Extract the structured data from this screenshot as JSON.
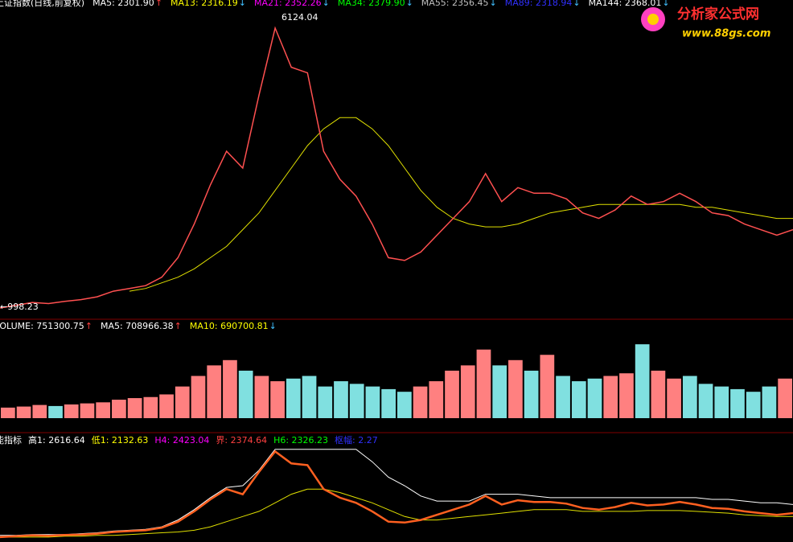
{
  "main_panel": {
    "title": "上证指数(日线,前复权)",
    "indicators": [
      {
        "label": "MA5: 2301.90",
        "arrow": "↑",
        "color": "#ffffff"
      },
      {
        "label": "MA13: 2316.19",
        "arrow": "↓",
        "color": "#ffff00"
      },
      {
        "label": "MA21: 2352.26",
        "arrow": "↓",
        "color": "#ff00ff"
      },
      {
        "label": "MA34: 2379.90",
        "arrow": "↓",
        "color": "#00ff00"
      },
      {
        "label": "MA55: 2356.45",
        "arrow": "↓",
        "color": "#c0c0c0"
      },
      {
        "label": "MA89: 2318.94",
        "arrow": "↓",
        "color": "#3030ff"
      },
      {
        "label": "MA144: 2368.01",
        "arrow": "↓",
        "color": "#ffffff"
      }
    ],
    "high_label": "6124.04",
    "low_label": "←998.23",
    "ylim": [
      900,
      6300
    ],
    "close": [
      1000,
      1050,
      1100,
      1080,
      1120,
      1150,
      1200,
      1300,
      1350,
      1400,
      1550,
      1900,
      2500,
      3200,
      3800,
      3500,
      4800,
      6000,
      5300,
      5200,
      3800,
      3300,
      3000,
      2500,
      1900,
      1850,
      2000,
      2300,
      2600,
      2900,
      3400,
      2900,
      3150,
      3050,
      3050,
      2950,
      2700,
      2600,
      2750,
      3000,
      2850,
      2900,
      3050,
      2900,
      2700,
      2650,
      2500,
      2400,
      2300,
      2400
    ],
    "close_color": "#ff5050",
    "slow_ma": [
      null,
      null,
      null,
      null,
      null,
      null,
      null,
      null,
      1300,
      1350,
      1450,
      1550,
      1700,
      1900,
      2100,
      2400,
      2700,
      3100,
      3500,
      3900,
      4200,
      4400,
      4400,
      4200,
      3900,
      3500,
      3100,
      2800,
      2600,
      2500,
      2450,
      2450,
      2500,
      2600,
      2700,
      2750,
      2800,
      2850,
      2850,
      2850,
      2850,
      2850,
      2850,
      2800,
      2800,
      2750,
      2700,
      2650,
      2600,
      2600
    ],
    "slow_ma_color": "#e0e000"
  },
  "volume_panel": {
    "indicators": [
      {
        "label": "VOLUME: 751300.75",
        "arrow": "↑",
        "color": "#ffffff"
      },
      {
        "label": "MA5: 708966.38",
        "arrow": "↑",
        "color": "#ffffff"
      },
      {
        "label": "MA10: 690700.81",
        "arrow": "↓",
        "color": "#ffff00"
      }
    ],
    "ylim": [
      0,
      1600000
    ],
    "values": [
      200000,
      220000,
      250000,
      230000,
      260000,
      280000,
      300000,
      350000,
      380000,
      400000,
      450000,
      600000,
      800000,
      1000000,
      1100000,
      900000,
      800000,
      700000,
      750000,
      800000,
      600000,
      700000,
      650000,
      600000,
      550000,
      500000,
      600000,
      700000,
      900000,
      1000000,
      1300000,
      1000000,
      1100000,
      900000,
      1200000,
      800000,
      700000,
      750000,
      800000,
      850000,
      1400000,
      900000,
      750000,
      800000,
      650000,
      600000,
      550000,
      500000,
      600000,
      750000
    ],
    "up_color": "#ff8080",
    "down_color": "#80e0e0"
  },
  "indicator_panel": {
    "indicators": [
      {
        "label": "能指标",
        "color": "#ffffff"
      },
      {
        "label": "高1: 2616.64",
        "color": "#ffffff"
      },
      {
        "label": "低1: 2132.63",
        "color": "#ffff00"
      },
      {
        "label": "H4: 2423.04",
        "color": "#ff00ff"
      },
      {
        "label": "界: 2374.64",
        "color": "#ff4040"
      },
      {
        "label": "H6: 2326.23",
        "color": "#00ff00"
      },
      {
        "label": "枢幅: 2.27",
        "color": "#3030ff"
      }
    ],
    "ylim": [
      900,
      6300
    ],
    "upper": [
      1100,
      1100,
      1150,
      1150,
      1150,
      1200,
      1250,
      1350,
      1400,
      1450,
      1600,
      2000,
      2600,
      3300,
      3900,
      4000,
      4900,
      6124,
      6124,
      6124,
      6124,
      6124,
      6124,
      5400,
      4500,
      4000,
      3400,
      3100,
      3100,
      3100,
      3500,
      3500,
      3500,
      3400,
      3300,
      3300,
      3300,
      3300,
      3300,
      3300,
      3300,
      3300,
      3300,
      3300,
      3200,
      3200,
      3100,
      3000,
      3000,
      2900
    ],
    "lower": [
      1000,
      1000,
      1000,
      1000,
      1050,
      1050,
      1100,
      1100,
      1150,
      1200,
      1250,
      1300,
      1400,
      1600,
      1900,
      2200,
      2500,
      3000,
      3500,
      3800,
      3800,
      3600,
      3300,
      3000,
      2600,
      2200,
      2000,
      2000,
      2100,
      2200,
      2300,
      2400,
      2500,
      2600,
      2600,
      2600,
      2500,
      2500,
      2500,
      2500,
      2550,
      2550,
      2550,
      2500,
      2450,
      2400,
      2300,
      2250,
      2200,
      2200
    ],
    "upper_color": "#ffffff",
    "lower_color": "#e0e000",
    "price_color": "#ff6020"
  },
  "logo": {
    "name": "分析家公式网",
    "url": "www.88gs.com"
  }
}
